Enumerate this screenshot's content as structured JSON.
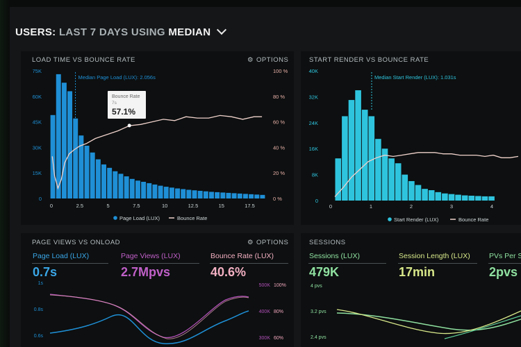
{
  "header": {
    "users": "USERS:",
    "last7": "LAST 7 DAYS",
    "using": "USING",
    "median": "MEDIAN"
  },
  "panels": {
    "load_bounce": {
      "title": "LOAD TIME VS BOUNCE RATE",
      "options_label": "OPTIONS",
      "median_label": "Median Page Load (LUX): 2.056s",
      "tooltip": {
        "title": "Bounce Rate",
        "sub": "7s",
        "value": "57.1%"
      },
      "legend": [
        "Page Load (LUX)",
        "Bounce Rate"
      ]
    },
    "render_bounce": {
      "title": "START RENDER VS BOUNCE RATE",
      "median_label": "Median Start Render (LUX): 1.031s",
      "legend": [
        "Start Render (LUX)",
        "Bounce Rate"
      ]
    },
    "page_views": {
      "title": "PAGE VIEWS VS ONLOAD",
      "options_label": "OPTIONS",
      "stats": [
        {
          "label": "Page Load (LUX)",
          "value": "0.7s"
        },
        {
          "label": "Page Views (LUX)",
          "value": "2.7Mpvs"
        },
        {
          "label": "Bounce Rate (LUX)",
          "value": "40.6%"
        }
      ],
      "left_ticks": [
        "1s",
        "0.8s",
        "0.6s"
      ],
      "right_ticks_a": [
        "500K",
        "400K",
        "300K"
      ],
      "right_ticks_b": [
        "100%",
        "80%",
        "60%"
      ]
    },
    "sessions": {
      "title": "SESSIONS",
      "stats": [
        {
          "label": "Sessions (LUX)",
          "value": "479K"
        },
        {
          "label": "Session Length (LUX)",
          "value": "17min"
        },
        {
          "label": "PVs Per Se",
          "value": "2pvs"
        }
      ],
      "left_ticks": [
        "4 pvs",
        "3.2 pvs",
        "2.4 pvs"
      ]
    }
  },
  "colors": {
    "blue": "#1f8fd6",
    "cyan": "#2fc4de",
    "pink": "#e8b0a8",
    "purple": "#b150b8",
    "pinkstat": "#f0a6bd",
    "green": "#8fe0a0",
    "yellowgreen": "#d8e88a"
  },
  "chart_data": [
    {
      "type": "bar",
      "title": "LOAD TIME VS BOUNCE RATE",
      "x": [
        0,
        0.5,
        1,
        1.5,
        2,
        2.5,
        3,
        3.5,
        4,
        4.5,
        5,
        5.5,
        6,
        6.5,
        7,
        7.5,
        8,
        8.5,
        9,
        9.5,
        10,
        10.5,
        11,
        11.5,
        12,
        12.5,
        13,
        13.5,
        14,
        14.5,
        15,
        15.5,
        16,
        16.5,
        17,
        17.5,
        18,
        18.5
      ],
      "x_ticks": [
        "0",
        "2.5",
        "5",
        "7.5",
        "10",
        "12.5",
        "15",
        "17.5"
      ],
      "y_ticks": [
        "0",
        "15K",
        "30K",
        "45K",
        "60K",
        "75K"
      ],
      "y2_ticks": [
        "0 %",
        "20 %",
        "40 %",
        "60 %",
        "80 %",
        "100 %"
      ],
      "ylim": [
        0,
        75000
      ],
      "series": [
        {
          "name": "Page Load (LUX)",
          "values": [
            49000,
            73000,
            68000,
            63000,
            47000,
            37000,
            31000,
            27000,
            23000,
            20000,
            18000,
            16000,
            14500,
            13000,
            11500,
            10500,
            9800,
            9000,
            8200,
            7500,
            6900,
            6400,
            5900,
            5500,
            5100,
            4800,
            4500,
            4200,
            3900,
            3700,
            3500,
            3300,
            3100,
            2900,
            2700,
            2500,
            2300,
            2100
          ]
        },
        {
          "name": "Bounce Rate",
          "x": [
            0.2,
            0.4,
            0.7,
            1,
            1.3,
            1.7,
            2.1,
            2.6,
            3.2,
            4,
            5,
            6,
            7,
            8,
            9,
            10,
            11,
            12,
            13,
            14,
            15,
            16,
            17,
            18,
            18.7
          ],
          "values": [
            33,
            18,
            8,
            15,
            28,
            35,
            38,
            41,
            43,
            47,
            50,
            53,
            57,
            58,
            60,
            62,
            61,
            64,
            63,
            63,
            65,
            64,
            62,
            64,
            64
          ]
        }
      ]
    },
    {
      "type": "bar",
      "title": "START RENDER VS BOUNCE RATE",
      "x_ticks": [
        "0",
        "1",
        "2",
        "3",
        "4"
      ],
      "y_ticks": [
        "0",
        "8K",
        "16K",
        "24K",
        "32K",
        "40K"
      ],
      "ylim": [
        0,
        40000
      ],
      "series": [
        {
          "name": "Start Render (LUX)",
          "values": [
            13000,
            26000,
            31000,
            34000,
            28000,
            26000,
            19000,
            16000,
            13000,
            11500,
            8000,
            6000,
            4800,
            3600,
            3200,
            2600,
            2200,
            2000,
            1800,
            1600,
            1500,
            1400,
            1300,
            1300
          ]
        },
        {
          "name": "Bounce Rate",
          "values": [
            3,
            10,
            18,
            24,
            30,
            33,
            35,
            34,
            35,
            36,
            37,
            37,
            37,
            36,
            36,
            35,
            35,
            35,
            34,
            35,
            33,
            33,
            34
          ]
        }
      ]
    }
  ]
}
